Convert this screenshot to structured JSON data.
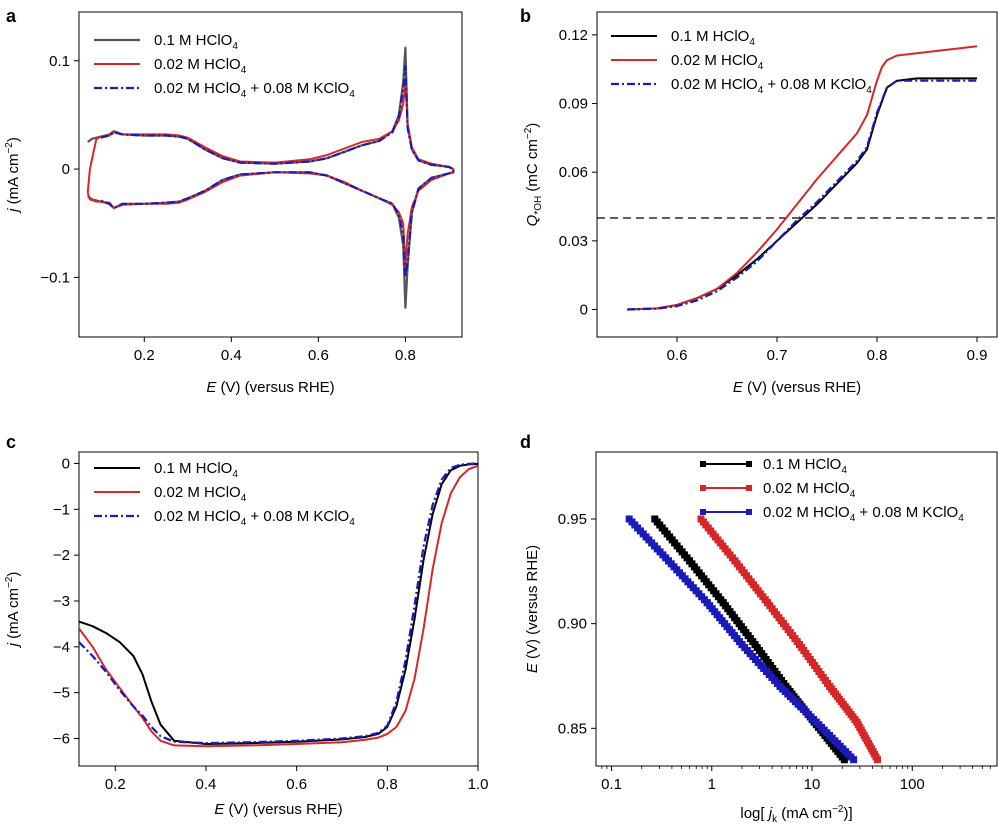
{
  "colors": {
    "black": "#000000",
    "gray": "#555555",
    "red": "#d62728",
    "blue": "#1a1ab8"
  },
  "chart_data": [
    {
      "panel": "a",
      "type": "line",
      "xlabel_italic": "E",
      "xlabel_rest": " (V) (versus RHE)",
      "ylabel_italic": "j",
      "ylabel_rest": " (mA cm",
      "ylabel_sup": "−2",
      "ylabel_close": ")",
      "xlim": [
        0.05,
        0.93
      ],
      "ylim": [
        -0.155,
        0.145
      ],
      "xticks": [
        0.2,
        0.4,
        0.6,
        0.8
      ],
      "xtick_labels": [
        "0.2",
        "0.4",
        "0.6",
        "0.8"
      ],
      "yticks": [
        -0.1,
        0,
        0.1
      ],
      "ytick_labels": [
        "−0.1",
        "0",
        "0.1"
      ],
      "legend": [
        {
          "main": "0.1 M HClO",
          "sub": "4",
          "tail": ""
        },
        {
          "main": "0.02 M HClO",
          "sub": "4",
          "tail": ""
        },
        {
          "main": "0.02 M HClO",
          "sub": "4",
          "tail": " + 0.08 M KClO",
          "sub2": "4"
        }
      ],
      "series": [
        {
          "name": "0.1 M HClO4",
          "color": "gray",
          "style": "solid",
          "width": 2.2,
          "x": [
            0.07,
            0.08,
            0.1,
            0.12,
            0.13,
            0.15,
            0.2,
            0.25,
            0.28,
            0.3,
            0.34,
            0.38,
            0.42,
            0.5,
            0.58,
            0.62,
            0.66,
            0.7,
            0.74,
            0.77,
            0.785,
            0.795,
            0.8,
            0.805,
            0.815,
            0.83,
            0.86,
            0.9,
            0.91,
            0.91,
            0.9,
            0.86,
            0.83,
            0.815,
            0.805,
            0.8,
            0.795,
            0.785,
            0.77,
            0.74,
            0.7,
            0.66,
            0.62,
            0.58,
            0.5,
            0.42,
            0.38,
            0.34,
            0.3,
            0.28,
            0.25,
            0.2,
            0.15,
            0.13,
            0.12,
            0.1,
            0.08,
            0.07
          ],
          "y": [
            0.025,
            0.028,
            0.03,
            0.032,
            0.035,
            0.032,
            0.031,
            0.031,
            0.03,
            0.028,
            0.018,
            0.01,
            0.006,
            0.005,
            0.007,
            0.01,
            0.016,
            0.022,
            0.026,
            0.035,
            0.05,
            0.08,
            0.112,
            0.04,
            0.018,
            0.008,
            0.004,
            0.002,
            0.0,
            -0.003,
            -0.004,
            -0.008,
            -0.018,
            -0.04,
            -0.09,
            -0.128,
            -0.07,
            -0.045,
            -0.032,
            -0.027,
            -0.02,
            -0.013,
            -0.006,
            -0.003,
            -0.003,
            -0.005,
            -0.01,
            -0.02,
            -0.027,
            -0.03,
            -0.031,
            -0.032,
            -0.032,
            -0.036,
            -0.032,
            -0.03,
            -0.028,
            -0.025
          ]
        },
        {
          "name": "0.02 M HClO4",
          "color": "red",
          "style": "solid",
          "width": 2,
          "x": [
            0.07,
            0.075,
            0.09,
            0.1,
            0.12,
            0.13,
            0.15,
            0.2,
            0.25,
            0.28,
            0.3,
            0.34,
            0.38,
            0.42,
            0.5,
            0.58,
            0.62,
            0.66,
            0.7,
            0.74,
            0.77,
            0.785,
            0.795,
            0.8,
            0.805,
            0.815,
            0.83,
            0.86,
            0.9,
            0.91,
            0.91,
            0.9,
            0.86,
            0.83,
            0.815,
            0.805,
            0.8,
            0.795,
            0.785,
            0.77,
            0.74,
            0.7,
            0.66,
            0.62,
            0.58,
            0.5,
            0.42,
            0.38,
            0.34,
            0.3,
            0.28,
            0.25,
            0.2,
            0.15,
            0.13,
            0.12,
            0.1,
            0.09,
            0.075,
            0.07
          ],
          "y": [
            -0.022,
            0.0,
            0.028,
            0.03,
            0.031,
            0.034,
            0.032,
            0.032,
            0.032,
            0.031,
            0.029,
            0.02,
            0.012,
            0.007,
            0.006,
            0.009,
            0.013,
            0.019,
            0.025,
            0.028,
            0.035,
            0.045,
            0.06,
            0.08,
            0.042,
            0.02,
            0.009,
            0.005,
            0.002,
            0.0,
            -0.003,
            -0.004,
            -0.01,
            -0.02,
            -0.035,
            -0.06,
            -0.09,
            -0.05,
            -0.04,
            -0.033,
            -0.027,
            -0.02,
            -0.012,
            -0.006,
            -0.004,
            -0.003,
            -0.006,
            -0.012,
            -0.021,
            -0.028,
            -0.031,
            -0.032,
            -0.032,
            -0.033,
            -0.036,
            -0.031,
            -0.03,
            -0.03,
            -0.028,
            -0.022
          ]
        },
        {
          "name": "0.02 M HClO4 + 0.08 M KClO4",
          "color": "blue",
          "style": "dashdot",
          "width": 2.2,
          "x": [
            0.1,
            0.12,
            0.13,
            0.15,
            0.2,
            0.25,
            0.28,
            0.3,
            0.34,
            0.38,
            0.42,
            0.5,
            0.58,
            0.62,
            0.66,
            0.7,
            0.74,
            0.77,
            0.785,
            0.795,
            0.8,
            0.805,
            0.815,
            0.83,
            0.86,
            0.9,
            0.91,
            0.91,
            0.9,
            0.86,
            0.83,
            0.815,
            0.805,
            0.8,
            0.795,
            0.785,
            0.77,
            0.74,
            0.7,
            0.66,
            0.62,
            0.58,
            0.5,
            0.42,
            0.38,
            0.34,
            0.3,
            0.28,
            0.25,
            0.2,
            0.15,
            0.13,
            0.12,
            0.1
          ],
          "y": [
            0.029,
            0.031,
            0.034,
            0.032,
            0.031,
            0.031,
            0.03,
            0.028,
            0.018,
            0.01,
            0.006,
            0.005,
            0.007,
            0.01,
            0.016,
            0.022,
            0.026,
            0.034,
            0.048,
            0.075,
            0.095,
            0.038,
            0.018,
            0.008,
            0.004,
            0.002,
            0.0,
            -0.003,
            -0.004,
            -0.008,
            -0.018,
            -0.04,
            -0.085,
            -0.1,
            -0.06,
            -0.042,
            -0.032,
            -0.027,
            -0.02,
            -0.013,
            -0.006,
            -0.003,
            -0.003,
            -0.005,
            -0.01,
            -0.02,
            -0.027,
            -0.03,
            -0.031,
            -0.032,
            -0.032,
            -0.036,
            -0.032,
            -0.029
          ]
        }
      ]
    },
    {
      "panel": "b",
      "type": "line",
      "xlabel_italic": "E",
      "xlabel_rest": " (V) (versus RHE)",
      "ylabel_italic": "Q",
      "ylabel_sub": "*OH",
      "ylabel_rest": " (mC cm",
      "ylabel_sup": "−2",
      "ylabel_close": ")",
      "xlim": [
        0.52,
        0.92
      ],
      "ylim": [
        -0.012,
        0.13
      ],
      "xticks": [
        0.6,
        0.7,
        0.8,
        0.9
      ],
      "xtick_labels": [
        "0.6",
        "0.7",
        "0.8",
        "0.9"
      ],
      "yticks": [
        0,
        0.03,
        0.06,
        0.09,
        0.12
      ],
      "ytick_labels": [
        "0",
        "0.03",
        "0.06",
        "0.09",
        "0.12"
      ],
      "hline": {
        "y": 0.04,
        "style": "dashed"
      },
      "legend": [
        {
          "main": "0.1 M HClO",
          "sub": "4",
          "tail": ""
        },
        {
          "main": "0.02 M HClO",
          "sub": "4",
          "tail": ""
        },
        {
          "main": "0.02 M HClO",
          "sub": "4",
          "tail": " + 0.08 M KClO",
          "sub2": "4"
        }
      ],
      "series": [
        {
          "name": "0.1 M HClO4",
          "color": "black",
          "style": "solid",
          "width": 2,
          "x": [
            0.55,
            0.58,
            0.6,
            0.62,
            0.64,
            0.66,
            0.68,
            0.7,
            0.72,
            0.74,
            0.76,
            0.78,
            0.79,
            0.8,
            0.81,
            0.82,
            0.84,
            0.86,
            0.88,
            0.9
          ],
          "y": [
            0.0,
            0.0005,
            0.002,
            0.005,
            0.009,
            0.015,
            0.022,
            0.03,
            0.038,
            0.046,
            0.055,
            0.064,
            0.07,
            0.085,
            0.097,
            0.1,
            0.101,
            0.101,
            0.101,
            0.101
          ]
        },
        {
          "name": "0.02 M HClO4",
          "color": "red",
          "style": "solid",
          "width": 2,
          "x": [
            0.55,
            0.58,
            0.6,
            0.62,
            0.64,
            0.66,
            0.68,
            0.7,
            0.72,
            0.74,
            0.76,
            0.78,
            0.79,
            0.8,
            0.805,
            0.81,
            0.82,
            0.84,
            0.86,
            0.88,
            0.9
          ],
          "y": [
            0.0,
            0.0005,
            0.002,
            0.005,
            0.009,
            0.016,
            0.025,
            0.035,
            0.046,
            0.057,
            0.067,
            0.077,
            0.085,
            0.1,
            0.106,
            0.109,
            0.111,
            0.112,
            0.113,
            0.114,
            0.115
          ]
        },
        {
          "name": "0.02 M HClO4 + 0.08 M KClO4",
          "color": "blue",
          "style": "dashdot",
          "width": 2.2,
          "x": [
            0.55,
            0.58,
            0.6,
            0.62,
            0.64,
            0.66,
            0.68,
            0.7,
            0.72,
            0.74,
            0.76,
            0.78,
            0.79,
            0.8,
            0.81,
            0.82,
            0.84,
            0.86,
            0.88,
            0.9
          ],
          "y": [
            0.0,
            0.0004,
            0.0015,
            0.004,
            0.008,
            0.014,
            0.021,
            0.03,
            0.039,
            0.047,
            0.056,
            0.065,
            0.071,
            0.086,
            0.097,
            0.1,
            0.1,
            0.1,
            0.1,
            0.1
          ]
        }
      ]
    },
    {
      "panel": "c",
      "type": "line",
      "xlabel_italic": "E",
      "xlabel_rest": " (V) (versus RHE)",
      "ylabel_italic": "j",
      "ylabel_rest": " (mA cm",
      "ylabel_sup": "−2",
      "ylabel_close": ")",
      "xlim": [
        0.12,
        1.0
      ],
      "ylim": [
        -6.6,
        0.25
      ],
      "xticks": [
        0.2,
        0.4,
        0.6,
        0.8,
        1.0
      ],
      "xtick_labels": [
        "0.2",
        "0.4",
        "0.6",
        "0.8",
        "1.0"
      ],
      "yticks": [
        0,
        -1,
        -2,
        -3,
        -4,
        -5,
        -6
      ],
      "ytick_labels": [
        "0",
        "−1",
        "−2",
        "−3",
        "−4",
        "−5",
        "−6"
      ],
      "legend": [
        {
          "main": "0.1 M HClO",
          "sub": "4",
          "tail": ""
        },
        {
          "main": "0.02 M HClO",
          "sub": "4",
          "tail": ""
        },
        {
          "main": "0.02 M HClO",
          "sub": "4",
          "tail": " + 0.08 M KClO",
          "sub2": "4"
        }
      ],
      "series": [
        {
          "name": "0.1 M HClO4",
          "color": "black",
          "style": "solid",
          "width": 2,
          "x": [
            0.12,
            0.15,
            0.18,
            0.21,
            0.24,
            0.26,
            0.28,
            0.3,
            0.33,
            0.4,
            0.5,
            0.6,
            0.7,
            0.75,
            0.78,
            0.8,
            0.82,
            0.84,
            0.86,
            0.88,
            0.9,
            0.92,
            0.94,
            0.96,
            0.98,
            1.0
          ],
          "y": [
            -3.45,
            -3.55,
            -3.7,
            -3.9,
            -4.2,
            -4.6,
            -5.2,
            -5.7,
            -6.05,
            -6.12,
            -6.1,
            -6.07,
            -6.02,
            -5.97,
            -5.9,
            -5.75,
            -5.3,
            -4.5,
            -3.4,
            -2.1,
            -1.1,
            -0.45,
            -0.15,
            -0.05,
            -0.02,
            -0.01
          ]
        },
        {
          "name": "0.02 M HClO4",
          "color": "red",
          "style": "solid",
          "width": 2,
          "x": [
            0.12,
            0.15,
            0.18,
            0.21,
            0.24,
            0.26,
            0.28,
            0.3,
            0.33,
            0.4,
            0.5,
            0.6,
            0.7,
            0.75,
            0.78,
            0.8,
            0.82,
            0.84,
            0.86,
            0.88,
            0.9,
            0.92,
            0.94,
            0.96,
            0.98,
            1.0
          ],
          "y": [
            -3.6,
            -4.0,
            -4.5,
            -4.9,
            -5.3,
            -5.55,
            -5.85,
            -6.05,
            -6.15,
            -6.17,
            -6.15,
            -6.12,
            -6.08,
            -6.03,
            -5.98,
            -5.9,
            -5.75,
            -5.4,
            -4.7,
            -3.6,
            -2.3,
            -1.3,
            -0.65,
            -0.3,
            -0.12,
            -0.05
          ]
        },
        {
          "name": "0.02 M HClO4 + 0.08 M KClO4",
          "color": "blue",
          "style": "dashdot",
          "width": 2.2,
          "x": [
            0.12,
            0.15,
            0.18,
            0.21,
            0.24,
            0.26,
            0.28,
            0.3,
            0.33,
            0.4,
            0.5,
            0.6,
            0.7,
            0.75,
            0.78,
            0.8,
            0.82,
            0.84,
            0.86,
            0.88,
            0.9,
            0.92,
            0.94,
            0.96,
            0.98,
            1.0
          ],
          "y": [
            -3.9,
            -4.2,
            -4.55,
            -4.95,
            -5.3,
            -5.5,
            -5.75,
            -5.95,
            -6.07,
            -6.1,
            -6.08,
            -6.05,
            -6.0,
            -5.95,
            -5.88,
            -5.72,
            -5.2,
            -4.3,
            -3.1,
            -1.8,
            -0.9,
            -0.35,
            -0.1,
            -0.03,
            -0.01,
            0.0
          ]
        }
      ]
    },
    {
      "panel": "d",
      "type": "line",
      "xscale": "log",
      "xlabel_pre": "log[ ",
      "xlabel_italic": "j",
      "xlabel_sub": "k",
      "xlabel_rest": " (mA cm",
      "xlabel_sup": "−2",
      "xlabel_close": ")]",
      "ylabel_italic": "E",
      "ylabel_rest": " (V) (versus RHE)",
      "xlim": [
        0.07,
        700
      ],
      "ylim": [
        0.832,
        0.982
      ],
      "xticks": [
        0.1,
        1,
        10,
        100
      ],
      "xtick_labels": [
        "0.1",
        "1",
        "10",
        "100"
      ],
      "yticks": [
        0.85,
        0.9,
        0.95
      ],
      "ytick_labels": [
        "0.85",
        "0.90",
        "0.95"
      ],
      "legend": [
        {
          "main": "0.1 M HClO",
          "sub": "4",
          "tail": ""
        },
        {
          "main": "0.02 M HClO",
          "sub": "4",
          "tail": ""
        },
        {
          "main": "0.02 M HClO",
          "sub": "4",
          "tail": " + 0.08 M KClO",
          "sub2": "4"
        }
      ],
      "series": [
        {
          "name": "0.1 M HClO4",
          "color": "black",
          "style": "markers",
          "width": 7,
          "x": [
            0.27,
            0.6,
            1.3,
            2.7,
            5.5,
            10.5,
            21
          ],
          "y": [
            0.95,
            0.93,
            0.91,
            0.89,
            0.87,
            0.853,
            0.835
          ]
        },
        {
          "name": "0.02 M HClO4",
          "color": "red",
          "style": "markers",
          "width": 7,
          "x": [
            0.78,
            1.7,
            3.6,
            7.5,
            15,
            28,
            45
          ],
          "y": [
            0.95,
            0.93,
            0.91,
            0.89,
            0.87,
            0.853,
            0.835
          ]
        },
        {
          "name": "0.02 M HClO4 + 0.08 M KClO4",
          "color": "blue",
          "style": "markers",
          "width": 7,
          "x": [
            0.15,
            0.37,
            0.9,
            2.0,
            4.8,
            11,
            26
          ],
          "y": [
            0.95,
            0.93,
            0.91,
            0.89,
            0.87,
            0.853,
            0.835
          ]
        }
      ]
    }
  ]
}
